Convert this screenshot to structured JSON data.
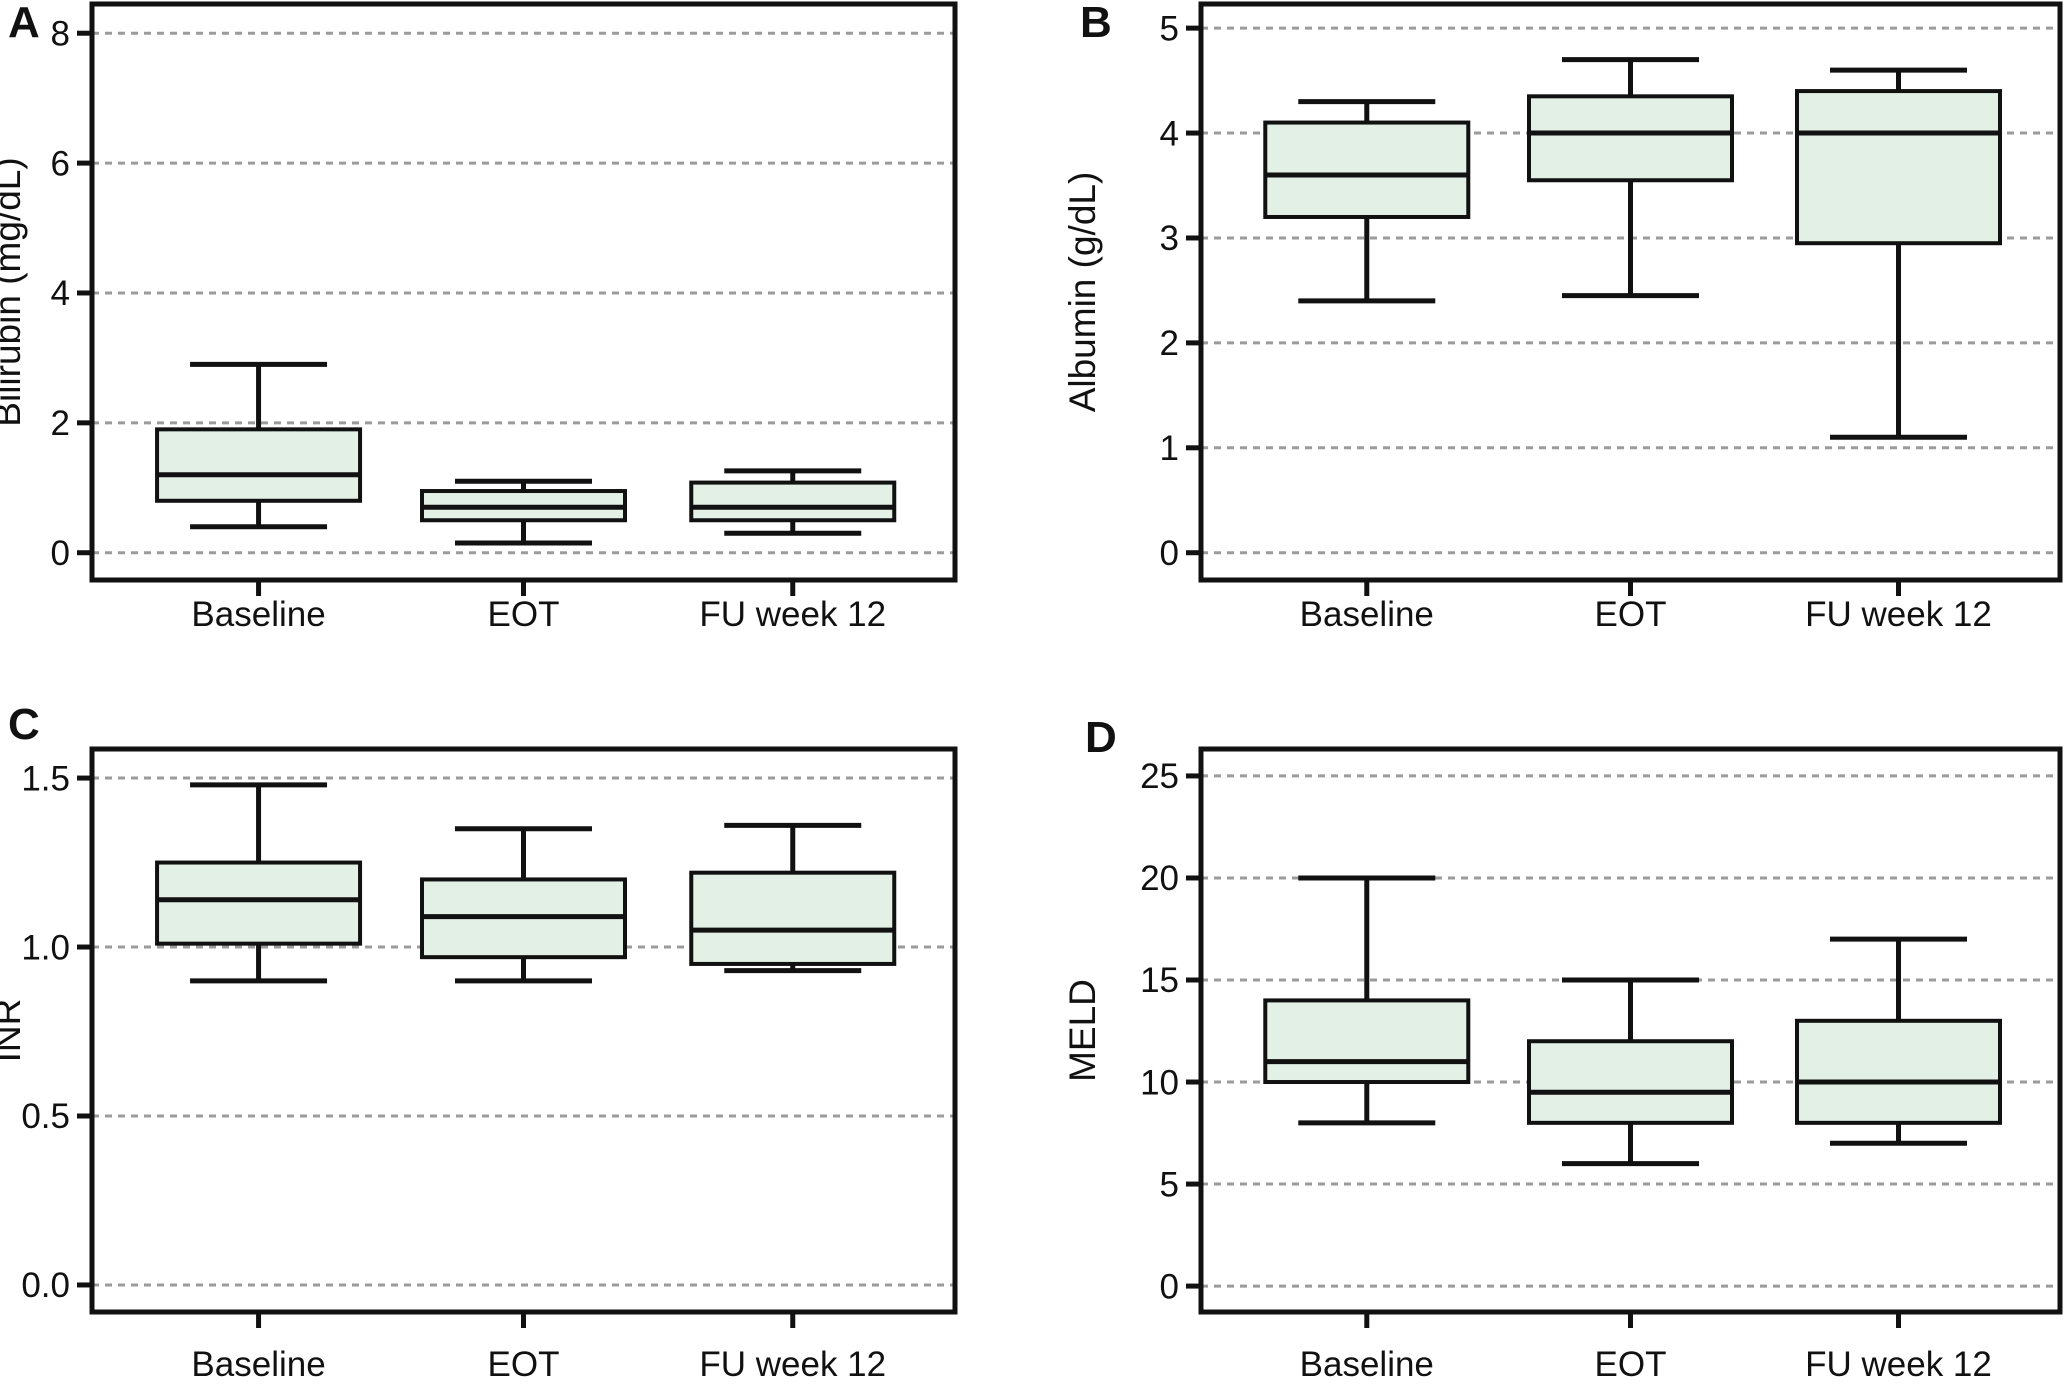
{
  "figure": {
    "background": "#ffffff",
    "line_color": "#111111",
    "grid_color": "#9b9b9b",
    "box_fill": "#e2f0e6",
    "legend": false
  },
  "chart_data": [
    {
      "type": "box",
      "panel_label": "A",
      "ylabel": "Bilirubin (mg/dL)",
      "xlabel": "",
      "categories": [
        "Baseline",
        "EOT",
        "FU week 12"
      ],
      "yticks": [
        0,
        2,
        4,
        6,
        8
      ],
      "ytick_labels": [
        "0",
        "2",
        "4",
        "6",
        "8"
      ],
      "ylim": [
        -0.42,
        8.45
      ],
      "grid": "horizontal-dashed",
      "boxes": [
        {
          "category": "Baseline",
          "whisker_low": 0.4,
          "q1": 0.8,
          "median": 1.2,
          "q3": 1.9,
          "whisker_high": 2.9
        },
        {
          "category": "EOT",
          "whisker_low": 0.15,
          "q1": 0.5,
          "median": 0.7,
          "q3": 0.95,
          "whisker_high": 1.1
        },
        {
          "category": "FU week 12",
          "whisker_low": 0.3,
          "q1": 0.5,
          "median": 0.7,
          "q3": 1.08,
          "whisker_high": 1.26
        }
      ]
    },
    {
      "type": "box",
      "panel_label": "B",
      "ylabel": "Albumin (g/dL)",
      "xlabel": "",
      "categories": [
        "Baseline",
        "EOT",
        "FU week 12"
      ],
      "yticks": [
        0,
        1,
        2,
        3,
        4,
        5
      ],
      "ytick_labels": [
        "0",
        "1",
        "2",
        "3",
        "4",
        "5"
      ],
      "ylim": [
        -0.26,
        5.23
      ],
      "grid": "horizontal-dashed",
      "boxes": [
        {
          "category": "Baseline",
          "whisker_low": 2.4,
          "q1": 3.2,
          "median": 3.6,
          "q3": 4.1,
          "whisker_high": 4.3
        },
        {
          "category": "EOT",
          "whisker_low": 2.45,
          "q1": 3.55,
          "median": 4.0,
          "q3": 4.35,
          "whisker_high": 4.7
        },
        {
          "category": "FU week 12",
          "whisker_low": 1.1,
          "q1": 2.95,
          "median": 4.0,
          "q3": 4.4,
          "whisker_high": 4.6
        }
      ]
    },
    {
      "type": "box",
      "panel_label": "C",
      "ylabel": "INR",
      "xlabel": "",
      "categories": [
        "Baseline",
        "EOT",
        "FU week 12"
      ],
      "yticks": [
        0.0,
        0.5,
        1.0,
        1.5
      ],
      "ytick_labels": [
        "0.0",
        "0.5",
        "1.0",
        "1.5"
      ],
      "ylim": [
        -0.08,
        1.586
      ],
      "grid": "horizontal-dashed",
      "boxes": [
        {
          "category": "Baseline",
          "whisker_low": 0.9,
          "q1": 1.01,
          "median": 1.14,
          "q3": 1.25,
          "whisker_high": 1.48
        },
        {
          "category": "EOT",
          "whisker_low": 0.9,
          "q1": 0.97,
          "median": 1.09,
          "q3": 1.2,
          "whisker_high": 1.35
        },
        {
          "category": "FU week 12",
          "whisker_low": 0.93,
          "q1": 0.95,
          "median": 1.05,
          "q3": 1.22,
          "whisker_high": 1.36
        }
      ]
    },
    {
      "type": "box",
      "panel_label": "D",
      "ylabel": "MELD",
      "xlabel": "",
      "categories": [
        "Baseline",
        "EOT",
        "FU week 12"
      ],
      "yticks": [
        0,
        5,
        10,
        15,
        20,
        25
      ],
      "ytick_labels": [
        "0",
        "5",
        "10",
        "15",
        "20",
        "25"
      ],
      "ylim": [
        -1.27,
        26.32
      ],
      "grid": "horizontal-dashed",
      "boxes": [
        {
          "category": "Baseline",
          "whisker_low": 8,
          "q1": 10,
          "median": 11,
          "q3": 14,
          "whisker_high": 20
        },
        {
          "category": "EOT",
          "whisker_low": 6,
          "q1": 8,
          "median": 9.5,
          "q3": 12,
          "whisker_high": 15
        },
        {
          "category": "FU week 12",
          "whisker_low": 7,
          "q1": 8,
          "median": 10,
          "q3": 13,
          "whisker_high": 17
        }
      ]
    }
  ]
}
